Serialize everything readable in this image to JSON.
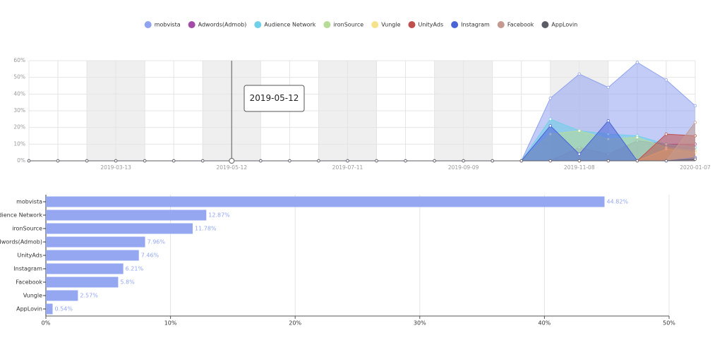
{
  "chart_data": [
    {
      "type": "line",
      "area": true,
      "categories": [
        null,
        null,
        null,
        "2019-03-13",
        null,
        null,
        null,
        "2019-05-12",
        null,
        null,
        null,
        "2019-07-11",
        null,
        null,
        null,
        "2019-09-09",
        null,
        null,
        null,
        "2019-11-08",
        null,
        null,
        null,
        "2020-01-07"
      ],
      "ylim": [
        0,
        60
      ],
      "yticks": [
        {
          "value": 0,
          "label": "0%"
        },
        {
          "value": 10,
          "label": "10%"
        },
        {
          "value": 20,
          "label": "20%"
        },
        {
          "value": 30,
          "label": "30%"
        },
        {
          "value": 40,
          "label": "40%"
        },
        {
          "value": 50,
          "label": "50%"
        },
        {
          "value": 60,
          "label": "60%"
        }
      ],
      "grid": true,
      "legend": "top",
      "tooltip": "2019-05-12",
      "series": [
        {
          "name": "mobvista",
          "color": "#8fa3ee",
          "values": [
            0,
            0,
            0,
            0,
            0,
            0,
            0,
            0,
            0,
            0,
            0,
            0,
            0,
            0,
            0,
            0,
            0,
            0,
            37.5,
            52,
            44,
            59,
            48.5,
            33
          ]
        },
        {
          "name": "Adwords(Admob)",
          "color": "#a24ca8",
          "values": [
            0,
            0,
            0,
            0,
            0,
            0,
            0,
            0,
            0,
            0,
            0,
            0,
            0,
            0,
            0,
            0,
            0,
            0,
            0,
            8,
            4,
            12,
            10,
            10
          ]
        },
        {
          "name": "Audience Network",
          "color": "#6fd0e8",
          "values": [
            0,
            0,
            0,
            0,
            0,
            0,
            0,
            0,
            0,
            0,
            0,
            0,
            0,
            0,
            0,
            0,
            0,
            0,
            25,
            18,
            16,
            15,
            10,
            8
          ]
        },
        {
          "name": "ironSource",
          "color": "#b6dc98",
          "values": [
            0,
            0,
            0,
            0,
            0,
            0,
            0,
            0,
            0,
            0,
            0,
            0,
            0,
            0,
            0,
            0,
            0,
            0,
            16,
            18,
            13,
            14,
            8,
            6
          ]
        },
        {
          "name": "Vungle",
          "color": "#f6e28a",
          "values": [
            0,
            0,
            0,
            0,
            0,
            0,
            0,
            0,
            0,
            0,
            0,
            0,
            0,
            0,
            0,
            0,
            0,
            0,
            0,
            0,
            0,
            0,
            7,
            5
          ]
        },
        {
          "name": "UnityAds",
          "color": "#c0504d",
          "values": [
            0,
            0,
            0,
            0,
            0,
            0,
            0,
            0,
            0,
            0,
            0,
            0,
            0,
            0,
            0,
            0,
            0,
            0,
            0,
            0,
            0,
            0,
            16,
            15
          ]
        },
        {
          "name": "Instagram",
          "color": "#4a64d8",
          "values": [
            0,
            0,
            0,
            0,
            0,
            0,
            0,
            0,
            0,
            0,
            0,
            0,
            0,
            0,
            0,
            0,
            0,
            0,
            21,
            4,
            24,
            0,
            0,
            2
          ]
        },
        {
          "name": "Facebook",
          "color": "#c49a90",
          "values": [
            0,
            0,
            0,
            0,
            0,
            0,
            0,
            0,
            0,
            0,
            0,
            0,
            0,
            0,
            0,
            0,
            0,
            0,
            0,
            0,
            0,
            0,
            0,
            23
          ]
        },
        {
          "name": "AppLovin",
          "color": "#5c5c66",
          "values": [
            0,
            0,
            0,
            0,
            0,
            0,
            0,
            0,
            0,
            0,
            0,
            0,
            0,
            0,
            0,
            0,
            0,
            0,
            0,
            0,
            0,
            0,
            0,
            1
          ]
        }
      ]
    },
    {
      "type": "hbar",
      "color": "#94a7f0",
      "categories": [
        "mobvista",
        "Audience Network",
        "ironSource",
        "Adwords(Admob)",
        "UnityAds",
        "Instagram",
        "Facebook",
        "Vungle",
        "AppLovin"
      ],
      "values": [
        44.82,
        12.87,
        11.78,
        7.96,
        7.46,
        6.21,
        5.8,
        2.57,
        0.54
      ],
      "value_labels": [
        "44.82%",
        "12.87%",
        "11.78%",
        "7.96%",
        "7.46%",
        "6.21%",
        "5.8%",
        "2.57%",
        "0.54%"
      ],
      "xlim": [
        0,
        50
      ],
      "xticks": [
        {
          "value": 0,
          "label": "0%"
        },
        {
          "value": 10,
          "label": "10%"
        },
        {
          "value": 20,
          "label": "20%"
        },
        {
          "value": 30,
          "label": "30%"
        },
        {
          "value": 40,
          "label": "40%"
        },
        {
          "value": 50,
          "label": "50%"
        }
      ],
      "grid": true
    }
  ]
}
